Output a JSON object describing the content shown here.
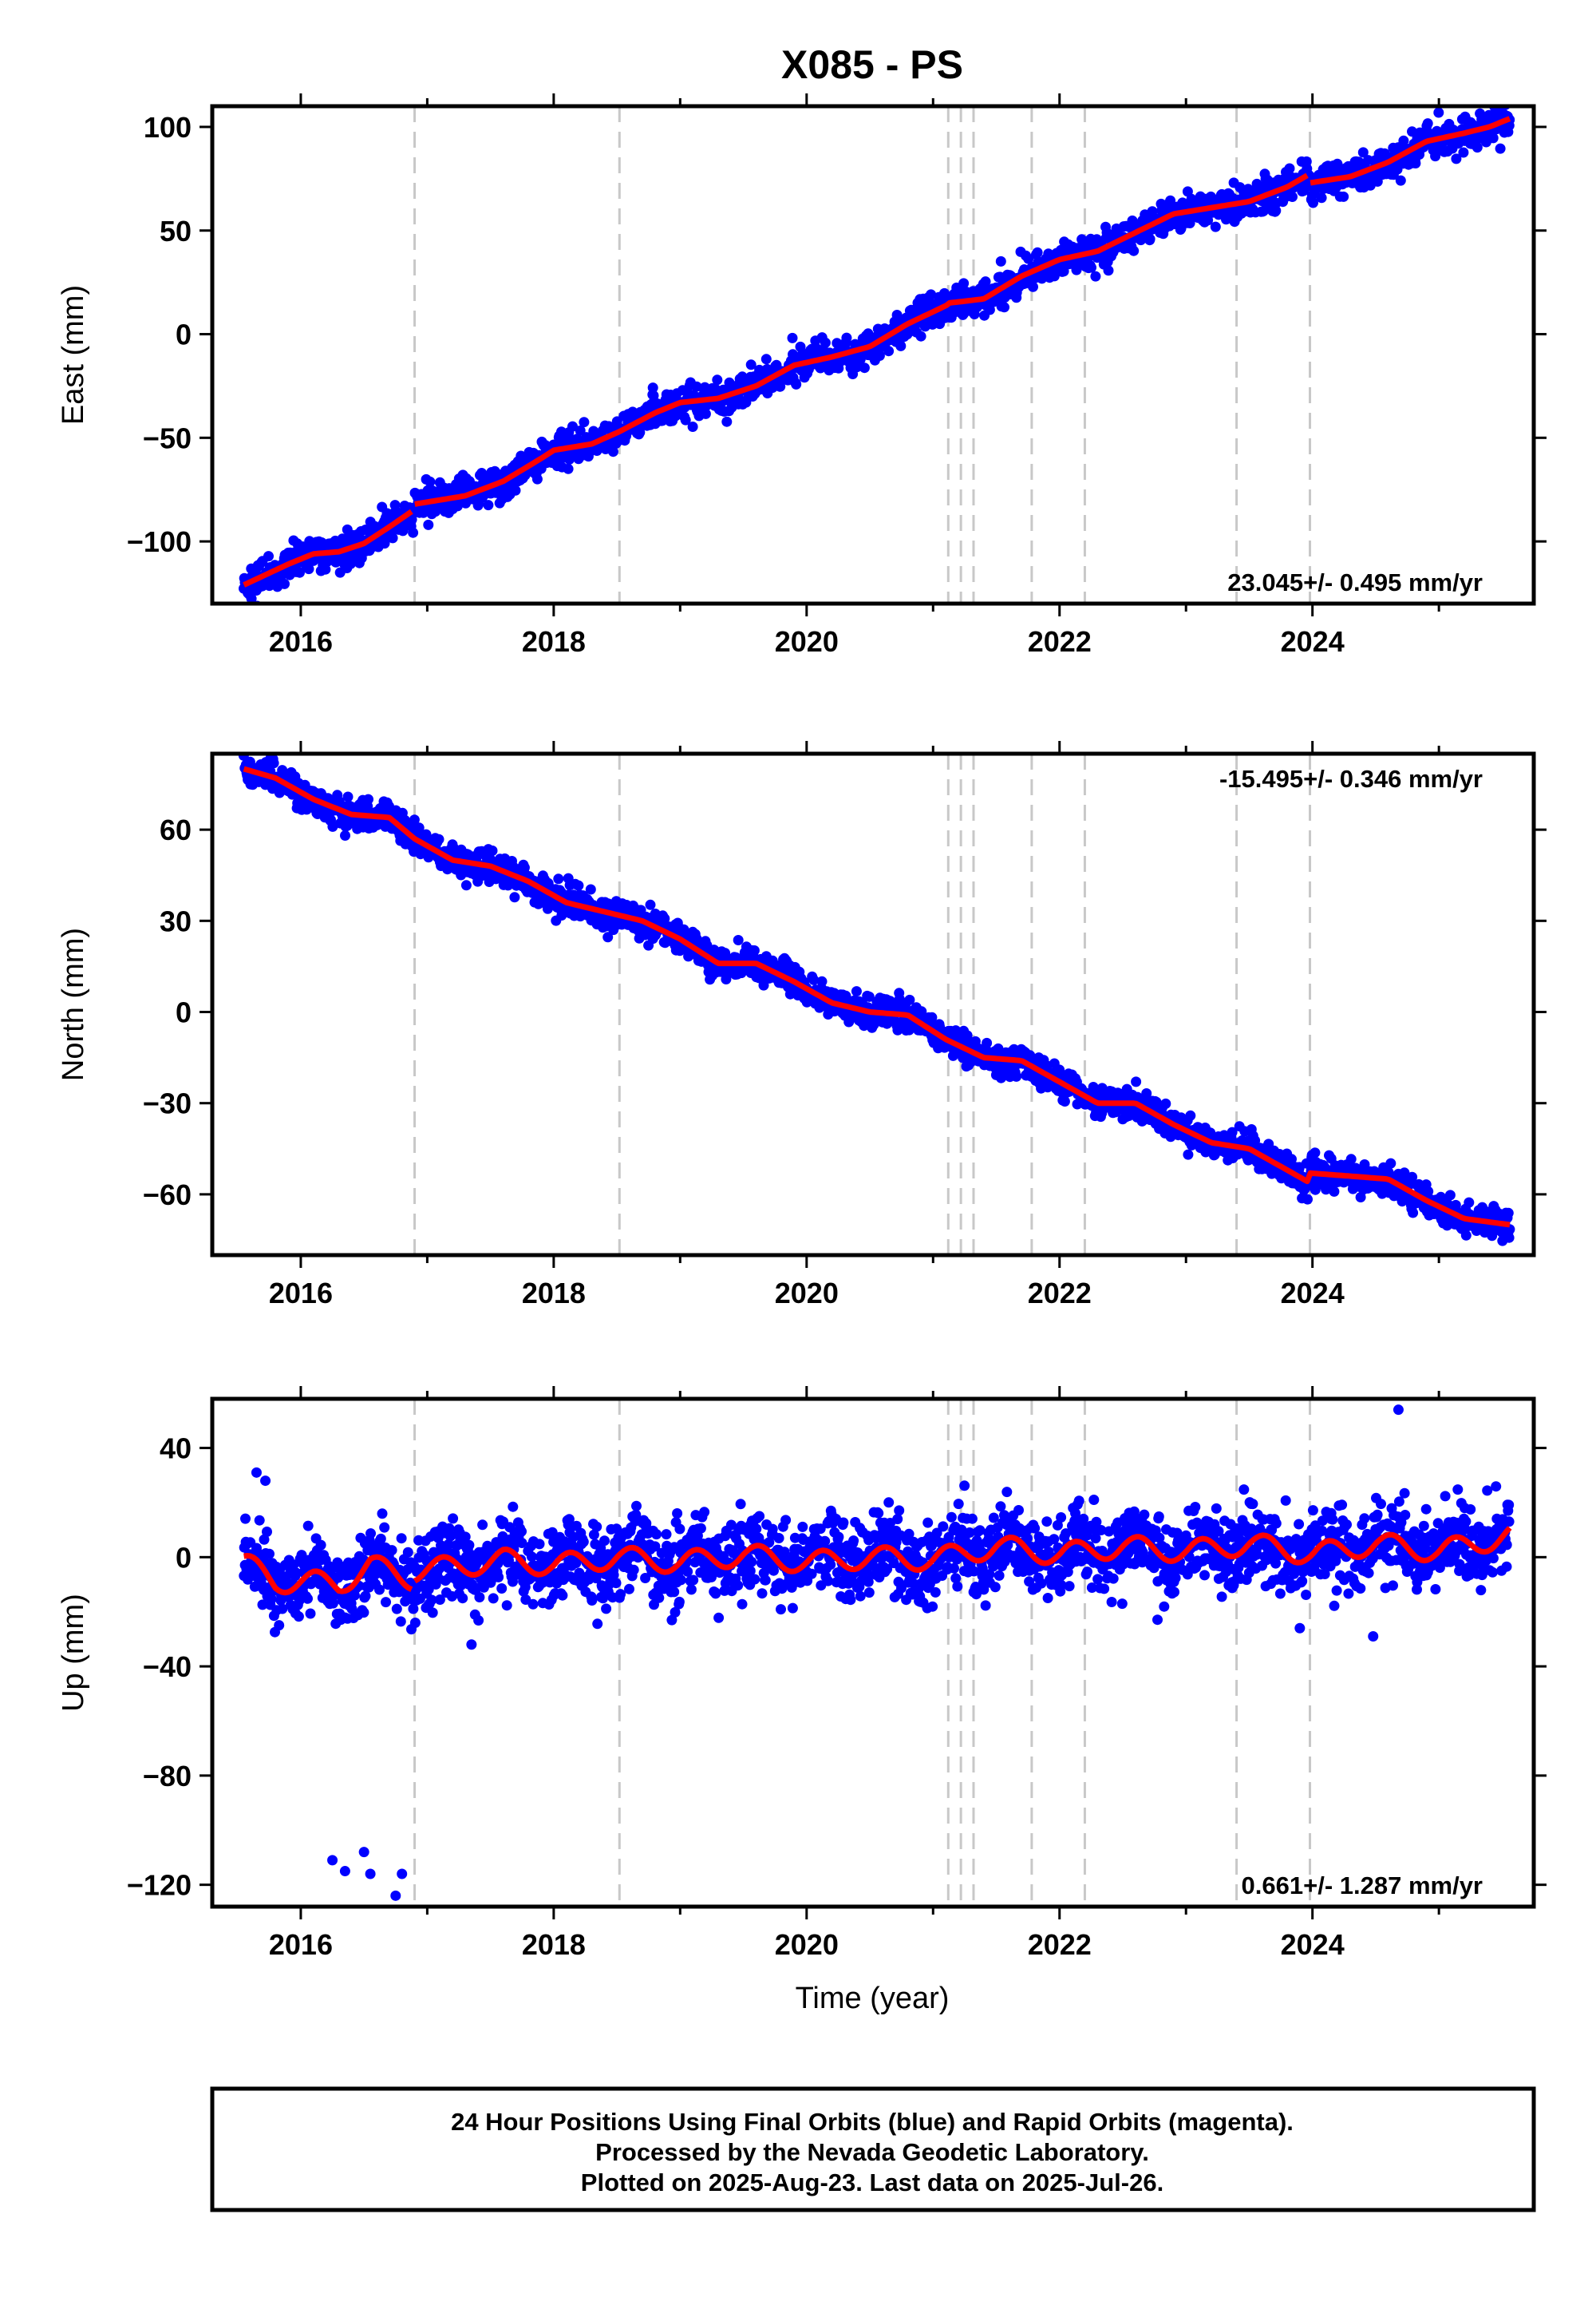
{
  "title": "X085 - PS",
  "xlabel": "Time (year)",
  "footer": {
    "line1": "24 Hour Positions Using Final Orbits (blue) and Rapid Orbits (magenta).",
    "line2": "Processed by the Nevada Geodetic Laboratory.",
    "line3": "Plotted on 2025-Aug-23. Last data on 2025-Jul-26."
  },
  "colors": {
    "points": "#0000ff",
    "model": "#ff0000",
    "steps": "#c8c8c8",
    "frame": "#000000"
  },
  "chart_data": [
    {
      "type": "scatter",
      "component": "east",
      "ylabel": "East (mm)",
      "rate_text": "23.045+/- 0.495 mm/yr",
      "rate_position": "bottom-right",
      "xlim": [
        2015.3,
        2025.75
      ],
      "ylim": [
        -130,
        110
      ],
      "xticks": [
        2016,
        2018,
        2020,
        2022,
        2024
      ],
      "yticks": [
        -100,
        -50,
        0,
        50,
        100
      ],
      "step_epochs": [
        2016.9,
        2018.52,
        2021.12,
        2021.22,
        2021.32,
        2021.78,
        2022.2,
        2023.4,
        2023.98
      ],
      "series": [
        {
          "kind": "model",
          "x": [
            2015.55,
            2015.9,
            2016.1,
            2016.3,
            2016.5,
            2016.7,
            2016.89,
            2016.9,
            2017.3,
            2017.6,
            2017.9,
            2018.0,
            2018.3,
            2018.52,
            2018.8,
            2019.0,
            2019.3,
            2019.6,
            2019.9,
            2020.2,
            2020.5,
            2020.8,
            2021.11,
            2021.12,
            2021.4,
            2021.7,
            2022.0,
            2022.3,
            2022.6,
            2022.9,
            2023.2,
            2023.5,
            2023.8,
            2023.97,
            2023.98,
            2024.3,
            2024.6,
            2024.9,
            2025.2,
            2025.4,
            2025.56
          ],
          "y": [
            -121,
            -111,
            -106,
            -105,
            -101,
            -93,
            -85,
            -82,
            -78,
            -71,
            -60,
            -56,
            -53,
            -47,
            -38,
            -33,
            -31,
            -25,
            -15,
            -11,
            -6,
            5,
            14,
            15,
            17,
            28,
            36,
            40,
            49,
            58,
            61,
            64,
            71,
            77,
            73,
            76,
            83,
            93,
            97,
            100,
            104
          ]
        },
        {
          "kind": "observations",
          "noise": 4.0
        }
      ]
    },
    {
      "type": "scatter",
      "component": "north",
      "ylabel": "North (mm)",
      "rate_text": "-15.495+/- 0.346 mm/yr",
      "rate_position": "top-right",
      "xlim": [
        2015.3,
        2025.75
      ],
      "ylim": [
        -80,
        85
      ],
      "xticks": [
        2016,
        2018,
        2020,
        2022,
        2024
      ],
      "yticks": [
        -60,
        -30,
        0,
        30,
        60
      ],
      "step_epochs": [
        2016.9,
        2018.52,
        2021.12,
        2021.22,
        2021.32,
        2021.78,
        2022.2,
        2023.4,
        2023.98
      ],
      "series": [
        {
          "kind": "model",
          "x": [
            2015.55,
            2015.8,
            2016.1,
            2016.4,
            2016.7,
            2016.9,
            2017.2,
            2017.5,
            2017.8,
            2018.1,
            2018.4,
            2018.7,
            2019.0,
            2019.3,
            2019.6,
            2019.9,
            2020.2,
            2020.5,
            2020.8,
            2021.1,
            2021.4,
            2021.7,
            2022.0,
            2022.3,
            2022.6,
            2022.9,
            2023.2,
            2023.5,
            2023.8,
            2023.97,
            2023.98,
            2024.3,
            2024.6,
            2024.9,
            2025.2,
            2025.56
          ],
          "y": [
            80,
            77,
            70,
            65,
            64,
            57,
            50,
            48,
            43,
            36,
            33,
            30,
            24,
            16,
            16,
            10,
            3,
            0,
            -1,
            -9,
            -15,
            -16,
            -23,
            -30,
            -30,
            -37,
            -43,
            -45,
            -52,
            -56,
            -53,
            -54,
            -55,
            -62,
            -68,
            -70
          ]
        },
        {
          "kind": "observations",
          "noise": 2.5
        }
      ]
    },
    {
      "type": "scatter",
      "component": "up",
      "ylabel": "Up (mm)",
      "rate_text": "0.661+/- 1.287 mm/yr",
      "rate_position": "bottom-right",
      "xlim": [
        2015.3,
        2025.75
      ],
      "ylim": [
        -128,
        58
      ],
      "xticks": [
        2016,
        2018,
        2020,
        2022,
        2024
      ],
      "yticks": [
        -120,
        -80,
        -40,
        0,
        40
      ],
      "step_epochs": [
        2016.9,
        2018.52,
        2021.12,
        2021.22,
        2021.32,
        2021.78,
        2022.2,
        2023.4,
        2023.98
      ],
      "outliers": {
        "x": [
          2016.25,
          2016.35,
          2016.5,
          2016.55,
          2016.75,
          2016.8,
          2015.65,
          2015.72,
          2017.35,
          2023.9,
          2024.48,
          2024.68
        ],
        "y": [
          -111,
          -115,
          -108,
          -116,
          -124,
          -116,
          31,
          28,
          -32,
          -26,
          -29,
          54
        ]
      },
      "series": [
        {
          "kind": "model",
          "seasonal_amplitude": 4,
          "x": [
            2015.55,
            2015.8,
            2016.1,
            2016.3,
            2016.55,
            2016.89,
            2016.9,
            2017.3,
            2017.6,
            2018.0,
            2018.5,
            2019.0,
            2019.5,
            2020.0,
            2020.5,
            2021.0,
            2021.5,
            2022.0,
            2022.5,
            2023.0,
            2023.5,
            2024.0,
            2024.5,
            2025.0,
            2025.56
          ],
          "y": [
            -2,
            -9,
            -9,
            -10,
            -3,
            -8,
            -5,
            -3,
            -1,
            -3,
            0,
            -2,
            1,
            -2,
            0,
            -1,
            4,
            1,
            4,
            2,
            5,
            1,
            5,
            2,
            8
          ]
        },
        {
          "kind": "observations",
          "noise": 7.0
        }
      ]
    }
  ]
}
